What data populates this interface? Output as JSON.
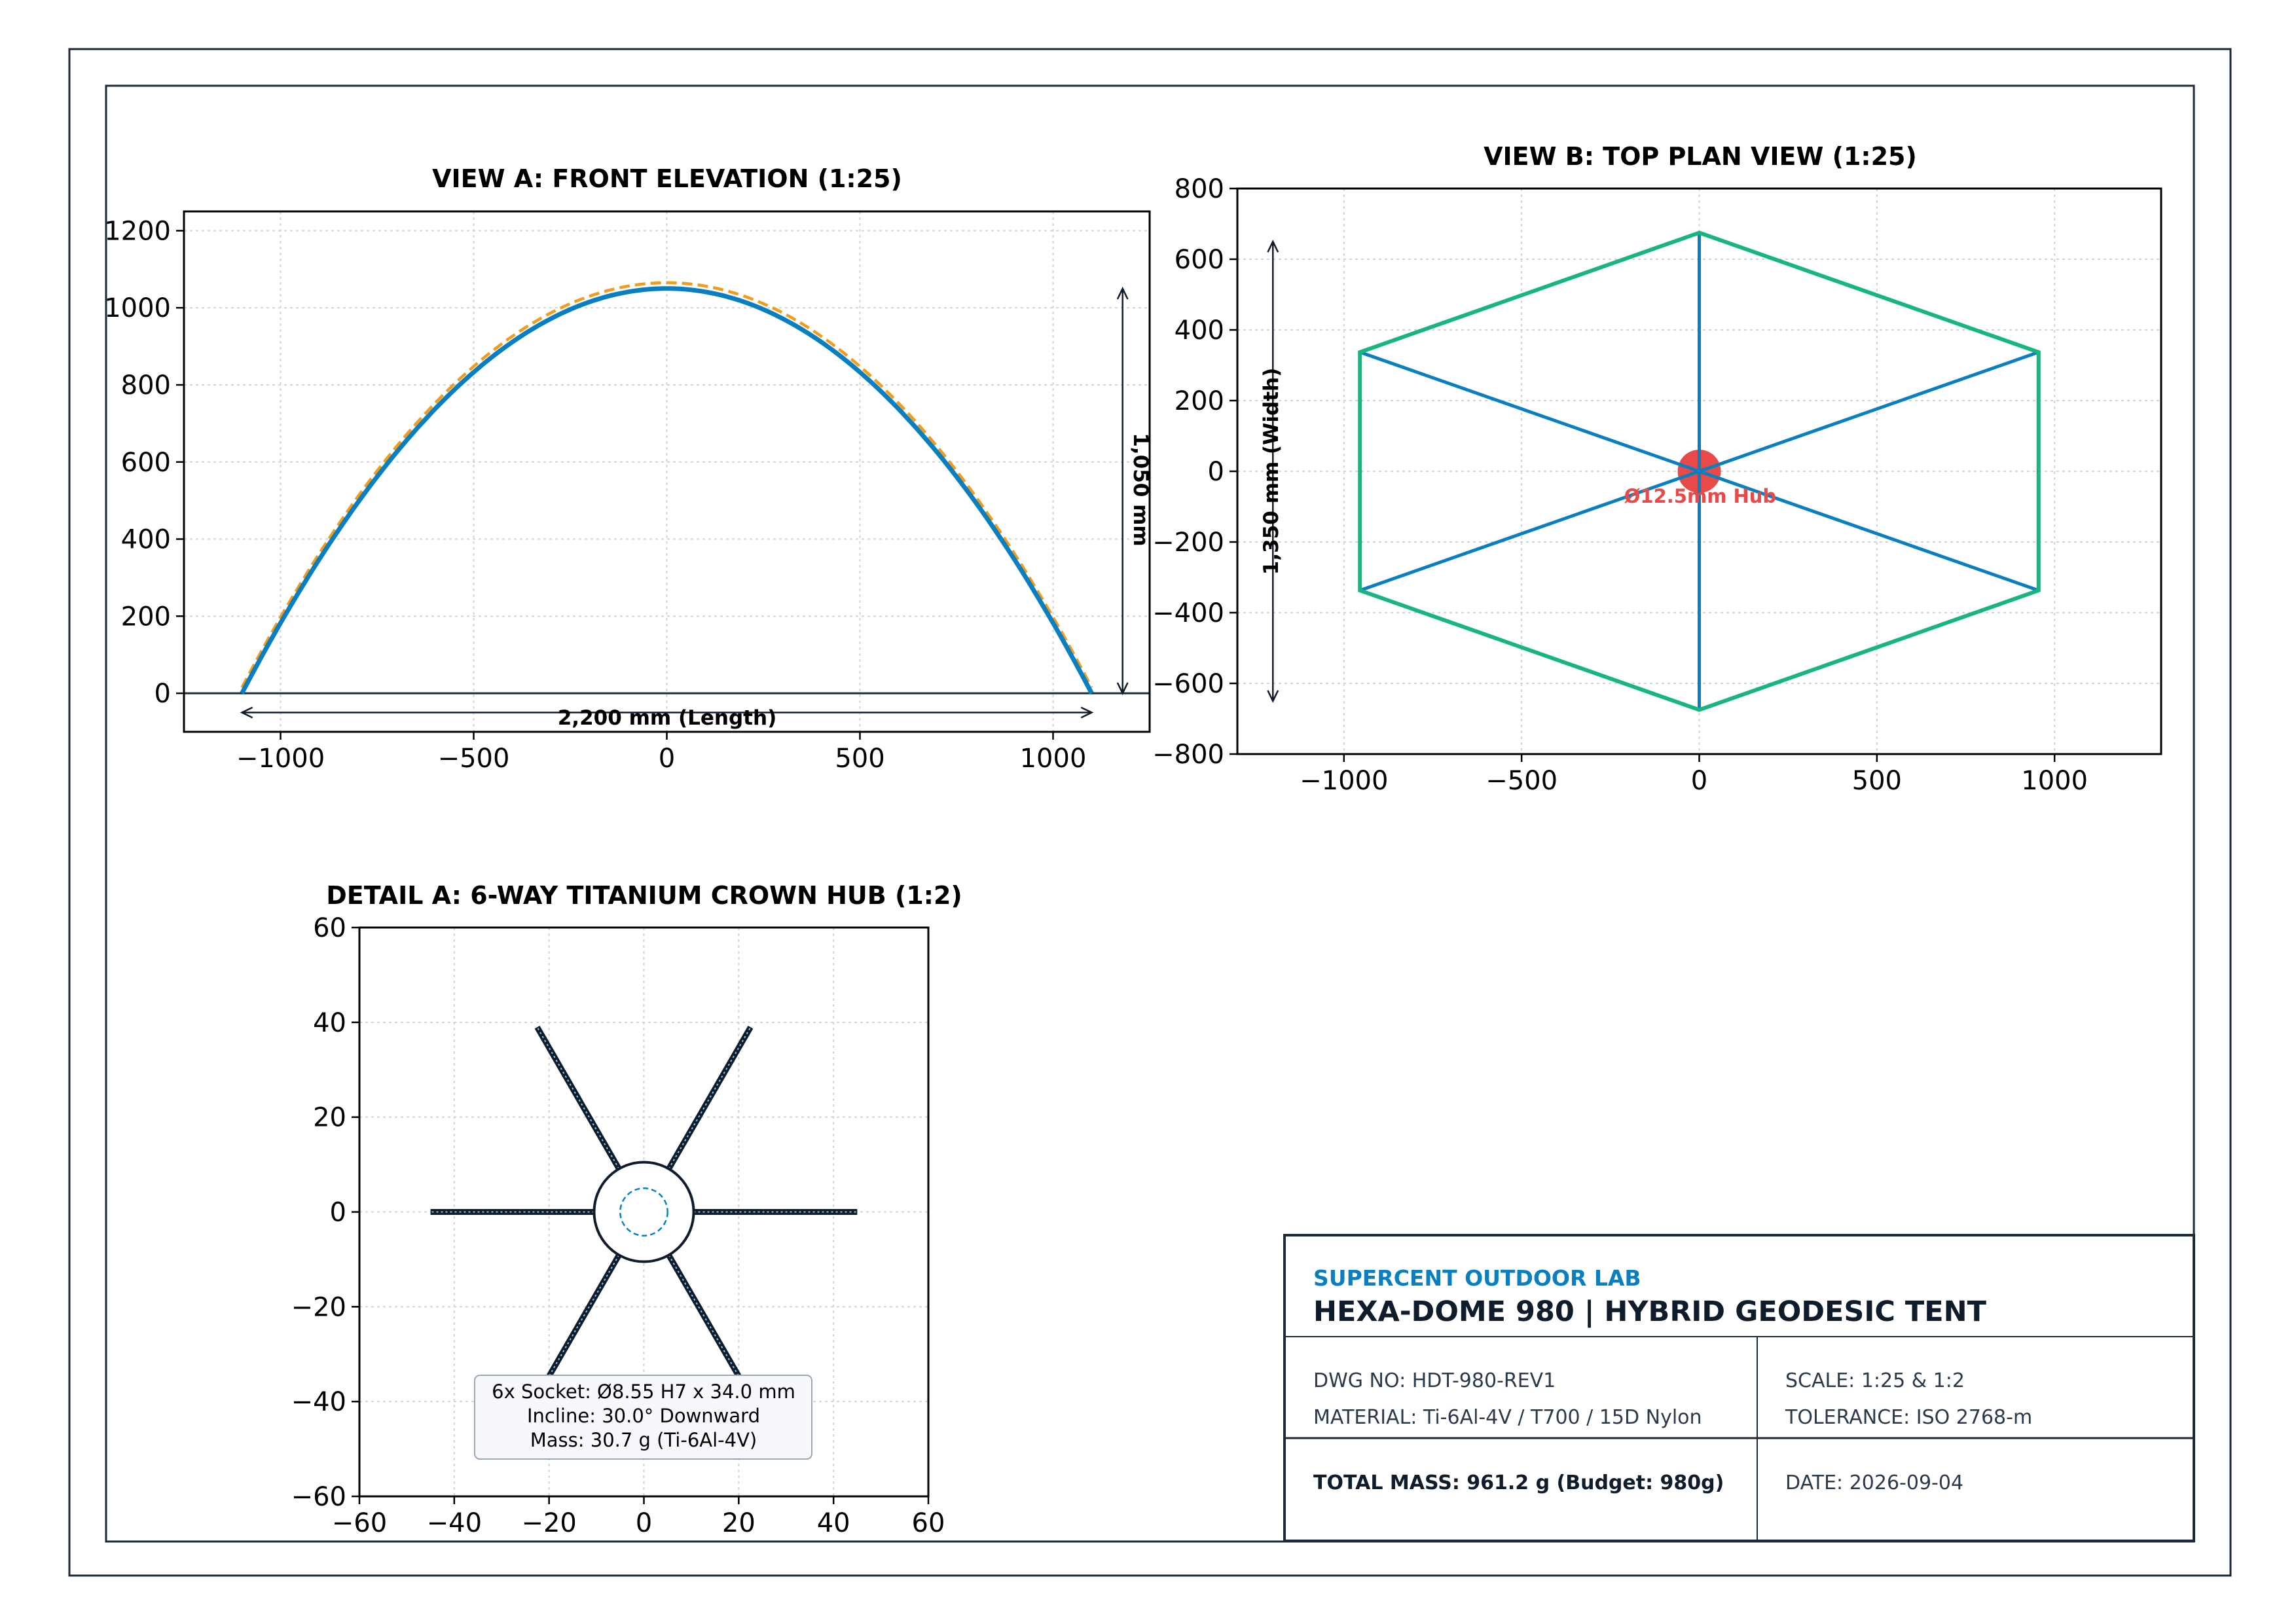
{
  "view_a": {
    "title": "VIEW A: FRONT ELEVATION (1:25)",
    "length_label": "2,200 mm (Length)",
    "height_label": "1,050 mm"
  },
  "view_b": {
    "title": "VIEW B: TOP PLAN VIEW (1:25)",
    "width_label": "1,350 mm (Width)",
    "hub_label": "Ø12.5mm Hub"
  },
  "detail_a": {
    "title": "DETAIL A: 6-WAY TITANIUM CROWN HUB (1:2)",
    "note_lines": [
      "6x Socket: Ø8.55 H7 x 34.0 mm",
      "Incline: 30.0° Downward",
      "Mass: 30.7 g (Ti-6Al-4V)"
    ]
  },
  "title_block": {
    "org": "SUPERCENT OUTDOOR LAB",
    "title": "HEXA-DOME 980 | HYBRID GEODESIC TENT",
    "dwg_no": "DWG NO: HDT-980-REV1",
    "material": "MATERIAL: Ti-6Al-4V / T700 / 15D Nylon",
    "scale": "SCALE: 1:25 & 1:2",
    "tolerance": "TOLERANCE: ISO 2768-m",
    "total_mass": "TOTAL MASS: 961.2 g (Budget: 980g)",
    "date": "DATE: 2026-09-04"
  },
  "colors": {
    "frame": "#1b2a3a",
    "pole_blue": "#0a7fc0",
    "fly_orange": "#f29b1c",
    "perimeter_green": "#19b57f",
    "hub_red": "#e84a4a",
    "org_blue": "#0a7fc0"
  },
  "chart_data": [
    {
      "type": "line",
      "title": "VIEW A: FRONT ELEVATION (1:25)",
      "xlim": [
        -1250,
        1250
      ],
      "ylim": [
        -100,
        1250
      ],
      "xticks": [
        -1000,
        -500,
        0,
        500,
        1000
      ],
      "yticks": [
        0,
        200,
        400,
        600,
        800,
        1000,
        1200
      ],
      "grid": true,
      "series": [
        {
          "shape": "parabola",
          "x_range": [
            -1100,
            1100
          ],
          "peak": 1050,
          "color": "#0a7fc0",
          "style": "solid"
        },
        {
          "shape": "parabola",
          "x_range": [
            -1100,
            1100
          ],
          "peak": 1065,
          "base": 15,
          "color": "#f29b1c",
          "style": "dashed"
        }
      ],
      "ground_line_y": 0,
      "annotations": [
        {
          "text": "2,200 mm (Length)",
          "from": [
            -1100,
            -50
          ],
          "to": [
            1100,
            -50
          ]
        },
        {
          "text": "1,050 mm",
          "from": [
            1180,
            0
          ],
          "to": [
            1180,
            1050
          ]
        }
      ]
    },
    {
      "type": "line",
      "title": "VIEW B: TOP PLAN VIEW (1:25)",
      "xlim": [
        -1300,
        1300
      ],
      "ylim": [
        -800,
        800
      ],
      "xticks": [
        -1000,
        -500,
        0,
        500,
        1000
      ],
      "yticks": [
        -800,
        -600,
        -400,
        -200,
        0,
        200,
        400,
        600,
        800
      ],
      "grid": true,
      "hexagon": [
        [
          0,
          675
        ],
        [
          955,
          337
        ],
        [
          955,
          -337
        ],
        [
          0,
          -675
        ],
        [
          -955,
          -337
        ],
        [
          -955,
          337
        ]
      ],
      "spokes_to_center": true,
      "hub": {
        "x": 0,
        "y": 0,
        "label": "Ø12.5mm Hub"
      },
      "annotations": [
        {
          "text": "1,350 mm (Width)",
          "from": [
            -1200,
            -650
          ],
          "to": [
            -1200,
            650
          ]
        }
      ]
    },
    {
      "type": "line",
      "title": "DETAIL A: 6-WAY TITANIUM CROWN HUB (1:2)",
      "xlim": [
        -60,
        60
      ],
      "ylim": [
        -60,
        60
      ],
      "xticks": [
        -60,
        -40,
        -20,
        0,
        20,
        40,
        60
      ],
      "yticks": [
        -60,
        -40,
        -20,
        0,
        20,
        40,
        60
      ],
      "grid": true,
      "hub_outer_radius": 10.5,
      "hub_inner_radius": 5,
      "socket_angles_deg": [
        0,
        60,
        120,
        180,
        240,
        300
      ],
      "socket_inner_r": 10.5,
      "socket_outer_r": 45
    }
  ]
}
